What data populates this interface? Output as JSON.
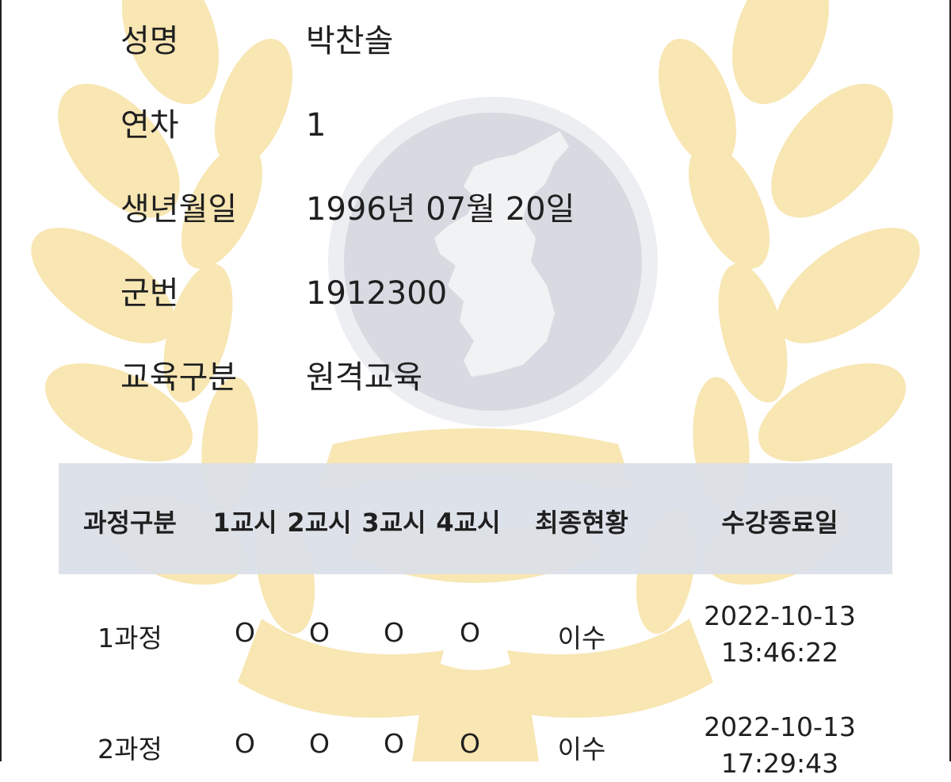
{
  "profile": {
    "fields": [
      {
        "label": "성명",
        "value": "박찬솔"
      },
      {
        "label": "연차",
        "value": "1"
      },
      {
        "label": "생년월일",
        "value": "1996년 07월 20일"
      },
      {
        "label": "군번",
        "value": "1912300"
      },
      {
        "label": "교육구분",
        "value": "원격교육"
      }
    ]
  },
  "table": {
    "headers": [
      "과정구분",
      "1교시",
      "2교시",
      "3교시",
      "4교시",
      "최종현황",
      "수강종료일"
    ],
    "rows": [
      {
        "course": "1과정",
        "p1": "O",
        "p2": "O",
        "p3": "O",
        "p4": "O",
        "status": "이수",
        "end_date": "2022-10-13",
        "end_time": "13:46:22"
      },
      {
        "course": "2과정",
        "p1": "O",
        "p2": "O",
        "p3": "O",
        "p4": "O",
        "status": "이수",
        "end_date": "2022-10-13",
        "end_time": "17:29:43"
      }
    ]
  },
  "colors": {
    "watermark_gold": "#f5d98c",
    "watermark_disc": "#d9dde3",
    "header_bg": "#dadfe8"
  }
}
